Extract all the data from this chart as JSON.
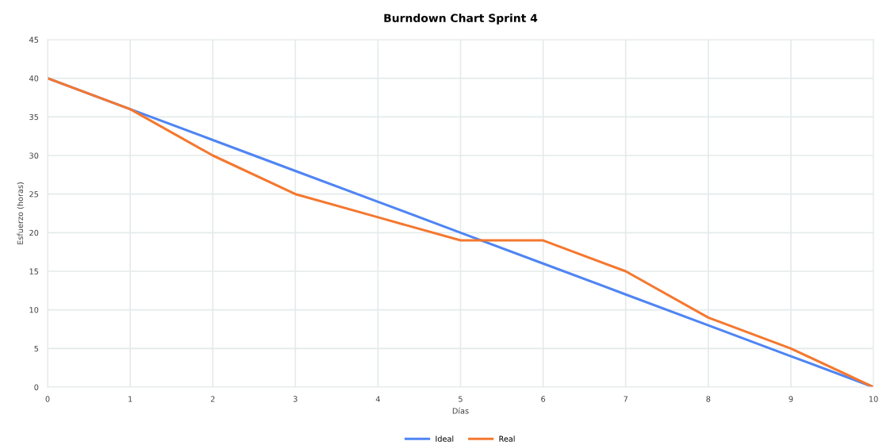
{
  "chart_data": {
    "type": "line",
    "title": "Burndown Chart Sprint 4",
    "xlabel": "Días",
    "ylabel": "Esfuerzo (horas)",
    "x": [
      0,
      1,
      2,
      3,
      4,
      5,
      6,
      7,
      8,
      9,
      10
    ],
    "series": [
      {
        "name": "Ideal",
        "color": "#4f85f3",
        "values": [
          40,
          36,
          32,
          28,
          24,
          20,
          16,
          12,
          8,
          4,
          0
        ]
      },
      {
        "name": "Real",
        "color": "#f4782f",
        "values": [
          40,
          36,
          30,
          25,
          22,
          19,
          19,
          15,
          9,
          5,
          0
        ]
      }
    ],
    "xlim": [
      0,
      10
    ],
    "xticks": [
      0,
      1,
      2,
      3,
      4,
      5,
      6,
      7,
      8,
      9,
      10
    ],
    "ylim": [
      0,
      45
    ],
    "yticks": [
      0,
      5,
      10,
      15,
      20,
      25,
      30,
      35,
      40,
      45
    ],
    "grid": true,
    "legend": "bottom",
    "marker": "none",
    "line_style": "solid"
  }
}
